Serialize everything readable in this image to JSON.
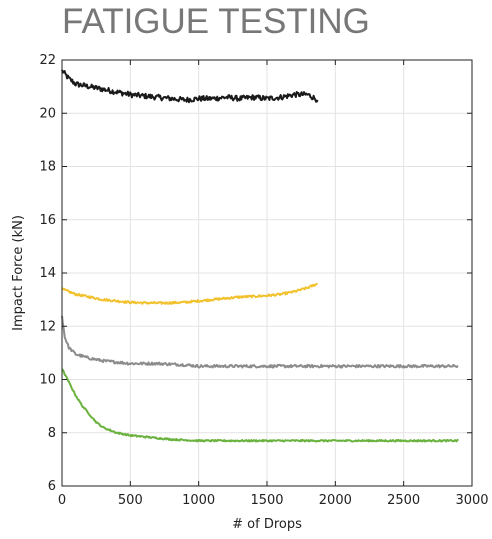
{
  "title": "FATIGUE TESTING",
  "chart_data": {
    "type": "line",
    "title": "FATIGUE TESTING",
    "xlabel": "# of Drops",
    "ylabel": "Impact Force (kN)",
    "xlim": [
      0,
      3000
    ],
    "ylim": [
      6,
      22
    ],
    "xticks": [
      0,
      500,
      1000,
      1500,
      2000,
      2500,
      3000
    ],
    "yticks": [
      6,
      8,
      10,
      12,
      14,
      16,
      18,
      20,
      22
    ],
    "grid": true,
    "legend": "none",
    "series": [
      {
        "color": "#1a1a1a",
        "noise": 0.1,
        "points": [
          [
            0,
            21.6
          ],
          [
            50,
            21.3
          ],
          [
            100,
            21.1
          ],
          [
            200,
            21.0
          ],
          [
            300,
            20.9
          ],
          [
            400,
            20.8
          ],
          [
            500,
            20.7
          ],
          [
            600,
            20.65
          ],
          [
            700,
            20.6
          ],
          [
            800,
            20.55
          ],
          [
            900,
            20.5
          ],
          [
            1000,
            20.55
          ],
          [
            1100,
            20.55
          ],
          [
            1200,
            20.6
          ],
          [
            1300,
            20.55
          ],
          [
            1400,
            20.6
          ],
          [
            1500,
            20.55
          ],
          [
            1600,
            20.6
          ],
          [
            1700,
            20.7
          ],
          [
            1800,
            20.7
          ],
          [
            1870,
            20.5
          ]
        ]
      },
      {
        "color": "#f2c12e",
        "noise": 0.04,
        "points": [
          [
            0,
            13.4
          ],
          [
            100,
            13.2
          ],
          [
            200,
            13.1
          ],
          [
            300,
            13.0
          ],
          [
            400,
            12.95
          ],
          [
            500,
            12.9
          ],
          [
            600,
            12.88
          ],
          [
            700,
            12.87
          ],
          [
            800,
            12.88
          ],
          [
            900,
            12.9
          ],
          [
            1000,
            12.95
          ],
          [
            1100,
            13.0
          ],
          [
            1200,
            13.05
          ],
          [
            1300,
            13.1
          ],
          [
            1400,
            13.12
          ],
          [
            1500,
            13.15
          ],
          [
            1600,
            13.2
          ],
          [
            1700,
            13.3
          ],
          [
            1800,
            13.45
          ],
          [
            1870,
            13.6
          ]
        ]
      },
      {
        "color": "#8c8c8c",
        "noise": 0.05,
        "points": [
          [
            0,
            12.4
          ],
          [
            20,
            11.6
          ],
          [
            50,
            11.2
          ],
          [
            100,
            10.95
          ],
          [
            200,
            10.8
          ],
          [
            300,
            10.7
          ],
          [
            400,
            10.65
          ],
          [
            500,
            10.6
          ],
          [
            700,
            10.6
          ],
          [
            900,
            10.55
          ],
          [
            1000,
            10.5
          ],
          [
            1200,
            10.5
          ],
          [
            1500,
            10.5
          ],
          [
            1800,
            10.5
          ],
          [
            2000,
            10.5
          ],
          [
            2500,
            10.5
          ],
          [
            2900,
            10.5
          ]
        ]
      },
      {
        "color": "#6ab23e",
        "noise": 0.03,
        "points": [
          [
            0,
            10.4
          ],
          [
            50,
            9.9
          ],
          [
            100,
            9.4
          ],
          [
            150,
            9.0
          ],
          [
            200,
            8.7
          ],
          [
            250,
            8.4
          ],
          [
            300,
            8.2
          ],
          [
            400,
            8.0
          ],
          [
            500,
            7.9
          ],
          [
            600,
            7.85
          ],
          [
            700,
            7.8
          ],
          [
            800,
            7.75
          ],
          [
            1000,
            7.7
          ],
          [
            1500,
            7.7
          ],
          [
            2000,
            7.7
          ],
          [
            2500,
            7.7
          ],
          [
            2900,
            7.7
          ]
        ]
      }
    ]
  }
}
